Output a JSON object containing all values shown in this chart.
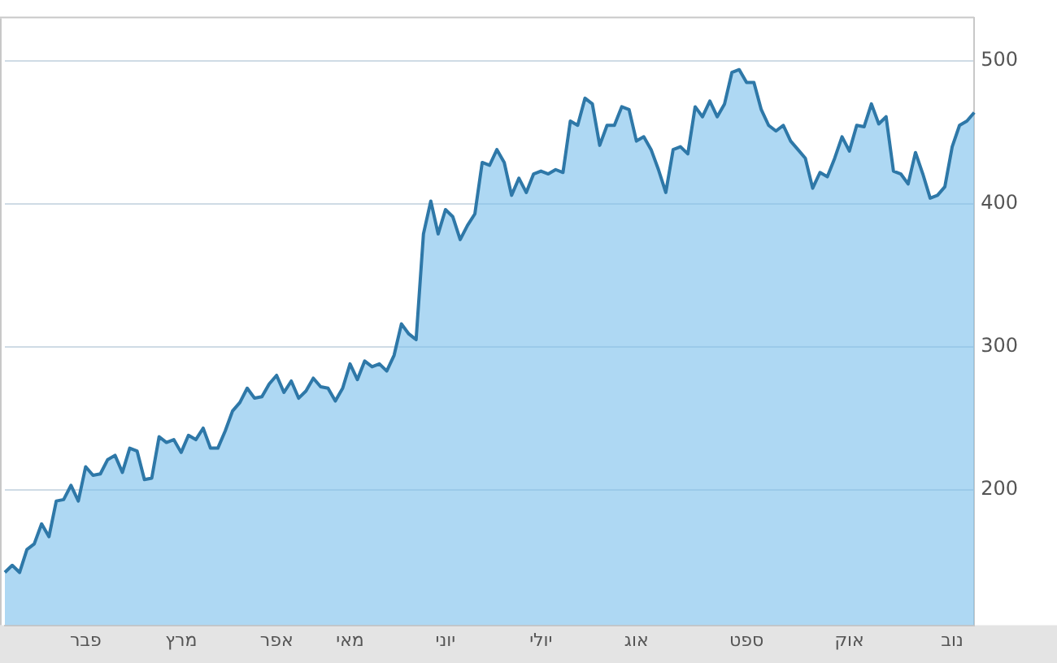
{
  "chart_data": {
    "type": "area",
    "categories": [
      null,
      null,
      null,
      null,
      null,
      null,
      null,
      null,
      null,
      null,
      null,
      "פבר",
      null,
      null,
      null,
      null,
      null,
      null,
      null,
      null,
      null,
      null,
      null,
      null,
      "מרץ",
      null,
      null,
      null,
      null,
      null,
      null,
      null,
      null,
      null,
      null,
      null,
      null,
      "אפר",
      null,
      null,
      null,
      null,
      null,
      null,
      null,
      null,
      null,
      "מאי",
      null,
      null,
      null,
      null,
      null,
      null,
      null,
      null,
      null,
      null,
      null,
      null,
      "יוני",
      null,
      null,
      null,
      null,
      null,
      null,
      null,
      null,
      null,
      null,
      null,
      null,
      "יולי",
      null,
      null,
      null,
      null,
      null,
      null,
      null,
      null,
      null,
      null,
      null,
      null,
      "אוג",
      null,
      null,
      null,
      null,
      null,
      null,
      null,
      null,
      null,
      null,
      null,
      null,
      null,
      null,
      "ספט",
      null,
      null,
      null,
      null,
      null,
      null,
      null,
      null,
      null,
      null,
      null,
      null,
      null,
      "אוק",
      null,
      null,
      null,
      null,
      null,
      null,
      null,
      null,
      null,
      null,
      null,
      null,
      null,
      "נוב",
      null,
      null,
      null
    ],
    "series": [
      {
        "color": "#2e78a8",
        "values": [
          142,
          147,
          142,
          158,
          162,
          176,
          167,
          192,
          193,
          203,
          192,
          216,
          210,
          211,
          221,
          224,
          212,
          229,
          227,
          207,
          208,
          237,
          233,
          235,
          226,
          238,
          235,
          243,
          229,
          229,
          241,
          255,
          261,
          271,
          264,
          265,
          274,
          280,
          268,
          276,
          264,
          269,
          278,
          272,
          271,
          262,
          271,
          288,
          277,
          290,
          286,
          288,
          283,
          294,
          316,
          309,
          305,
          379,
          402,
          379,
          396,
          391,
          375,
          385,
          393,
          429,
          427,
          438,
          429,
          406,
          418,
          408,
          421,
          423,
          421,
          424,
          422,
          458,
          455,
          474,
          470,
          441,
          455,
          455,
          468,
          466,
          444,
          447,
          438,
          424,
          408,
          438,
          440,
          435,
          468,
          461,
          472,
          461,
          470,
          492,
          494,
          485,
          485,
          466,
          455,
          451,
          455,
          444,
          438,
          432,
          411,
          422,
          419,
          432,
          447,
          437,
          455,
          454,
          470,
          456,
          461,
          423,
          421,
          414,
          436,
          421,
          404,
          406,
          412,
          440,
          455,
          458,
          464
        ]
      }
    ],
    "ylim": [
      105,
      530
    ],
    "yticks": [
      200,
      300,
      400,
      500
    ],
    "grid": "y",
    "legend": false,
    "marker": "none",
    "line_style": "solid"
  }
}
